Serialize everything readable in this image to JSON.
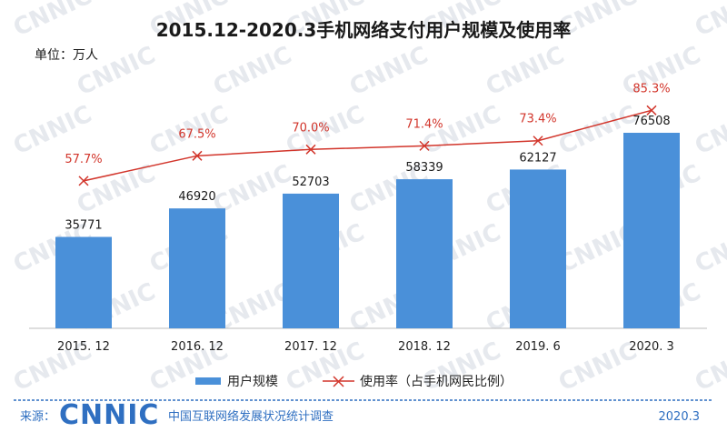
{
  "chart_data": {
    "type": "bar",
    "title": "2015.12-2020.3手机网络支付用户规模及使用率",
    "unit_label": "单位：万人",
    "categories": [
      "2015. 12",
      "2016. 12",
      "2017. 12",
      "2018. 12",
      "2019. 6",
      "2020. 3"
    ],
    "series": [
      {
        "name": "用户规模",
        "type": "bar",
        "color": "#4a90d9",
        "values": [
          35771,
          46920,
          52703,
          58339,
          62127,
          76508
        ],
        "labels": [
          "35771",
          "46920",
          "52703",
          "58339",
          "62127",
          "76508"
        ]
      },
      {
        "name": "使用率（占手机网民比例）",
        "type": "line",
        "color": "#d2352b",
        "values": [
          57.7,
          67.5,
          70.0,
          71.4,
          73.4,
          85.3
        ],
        "labels": [
          "57.7%",
          "67.5%",
          "70.0%",
          "71.4%",
          "73.4%",
          "85.3%"
        ]
      }
    ],
    "ylim_bar": [
      0,
      100000
    ],
    "ylim_rate": [
      0,
      100
    ],
    "grid": false,
    "legend_position": "bottom"
  },
  "footer": {
    "source_label": "来源：",
    "logo": "CNNIC",
    "org": "中国互联网络发展状况统计调查",
    "date": "2020.3"
  },
  "watermark": "CNNIC",
  "colors": {
    "bar": "#4a90d9",
    "line": "#d2352b",
    "footer": "#2f6fc1"
  }
}
